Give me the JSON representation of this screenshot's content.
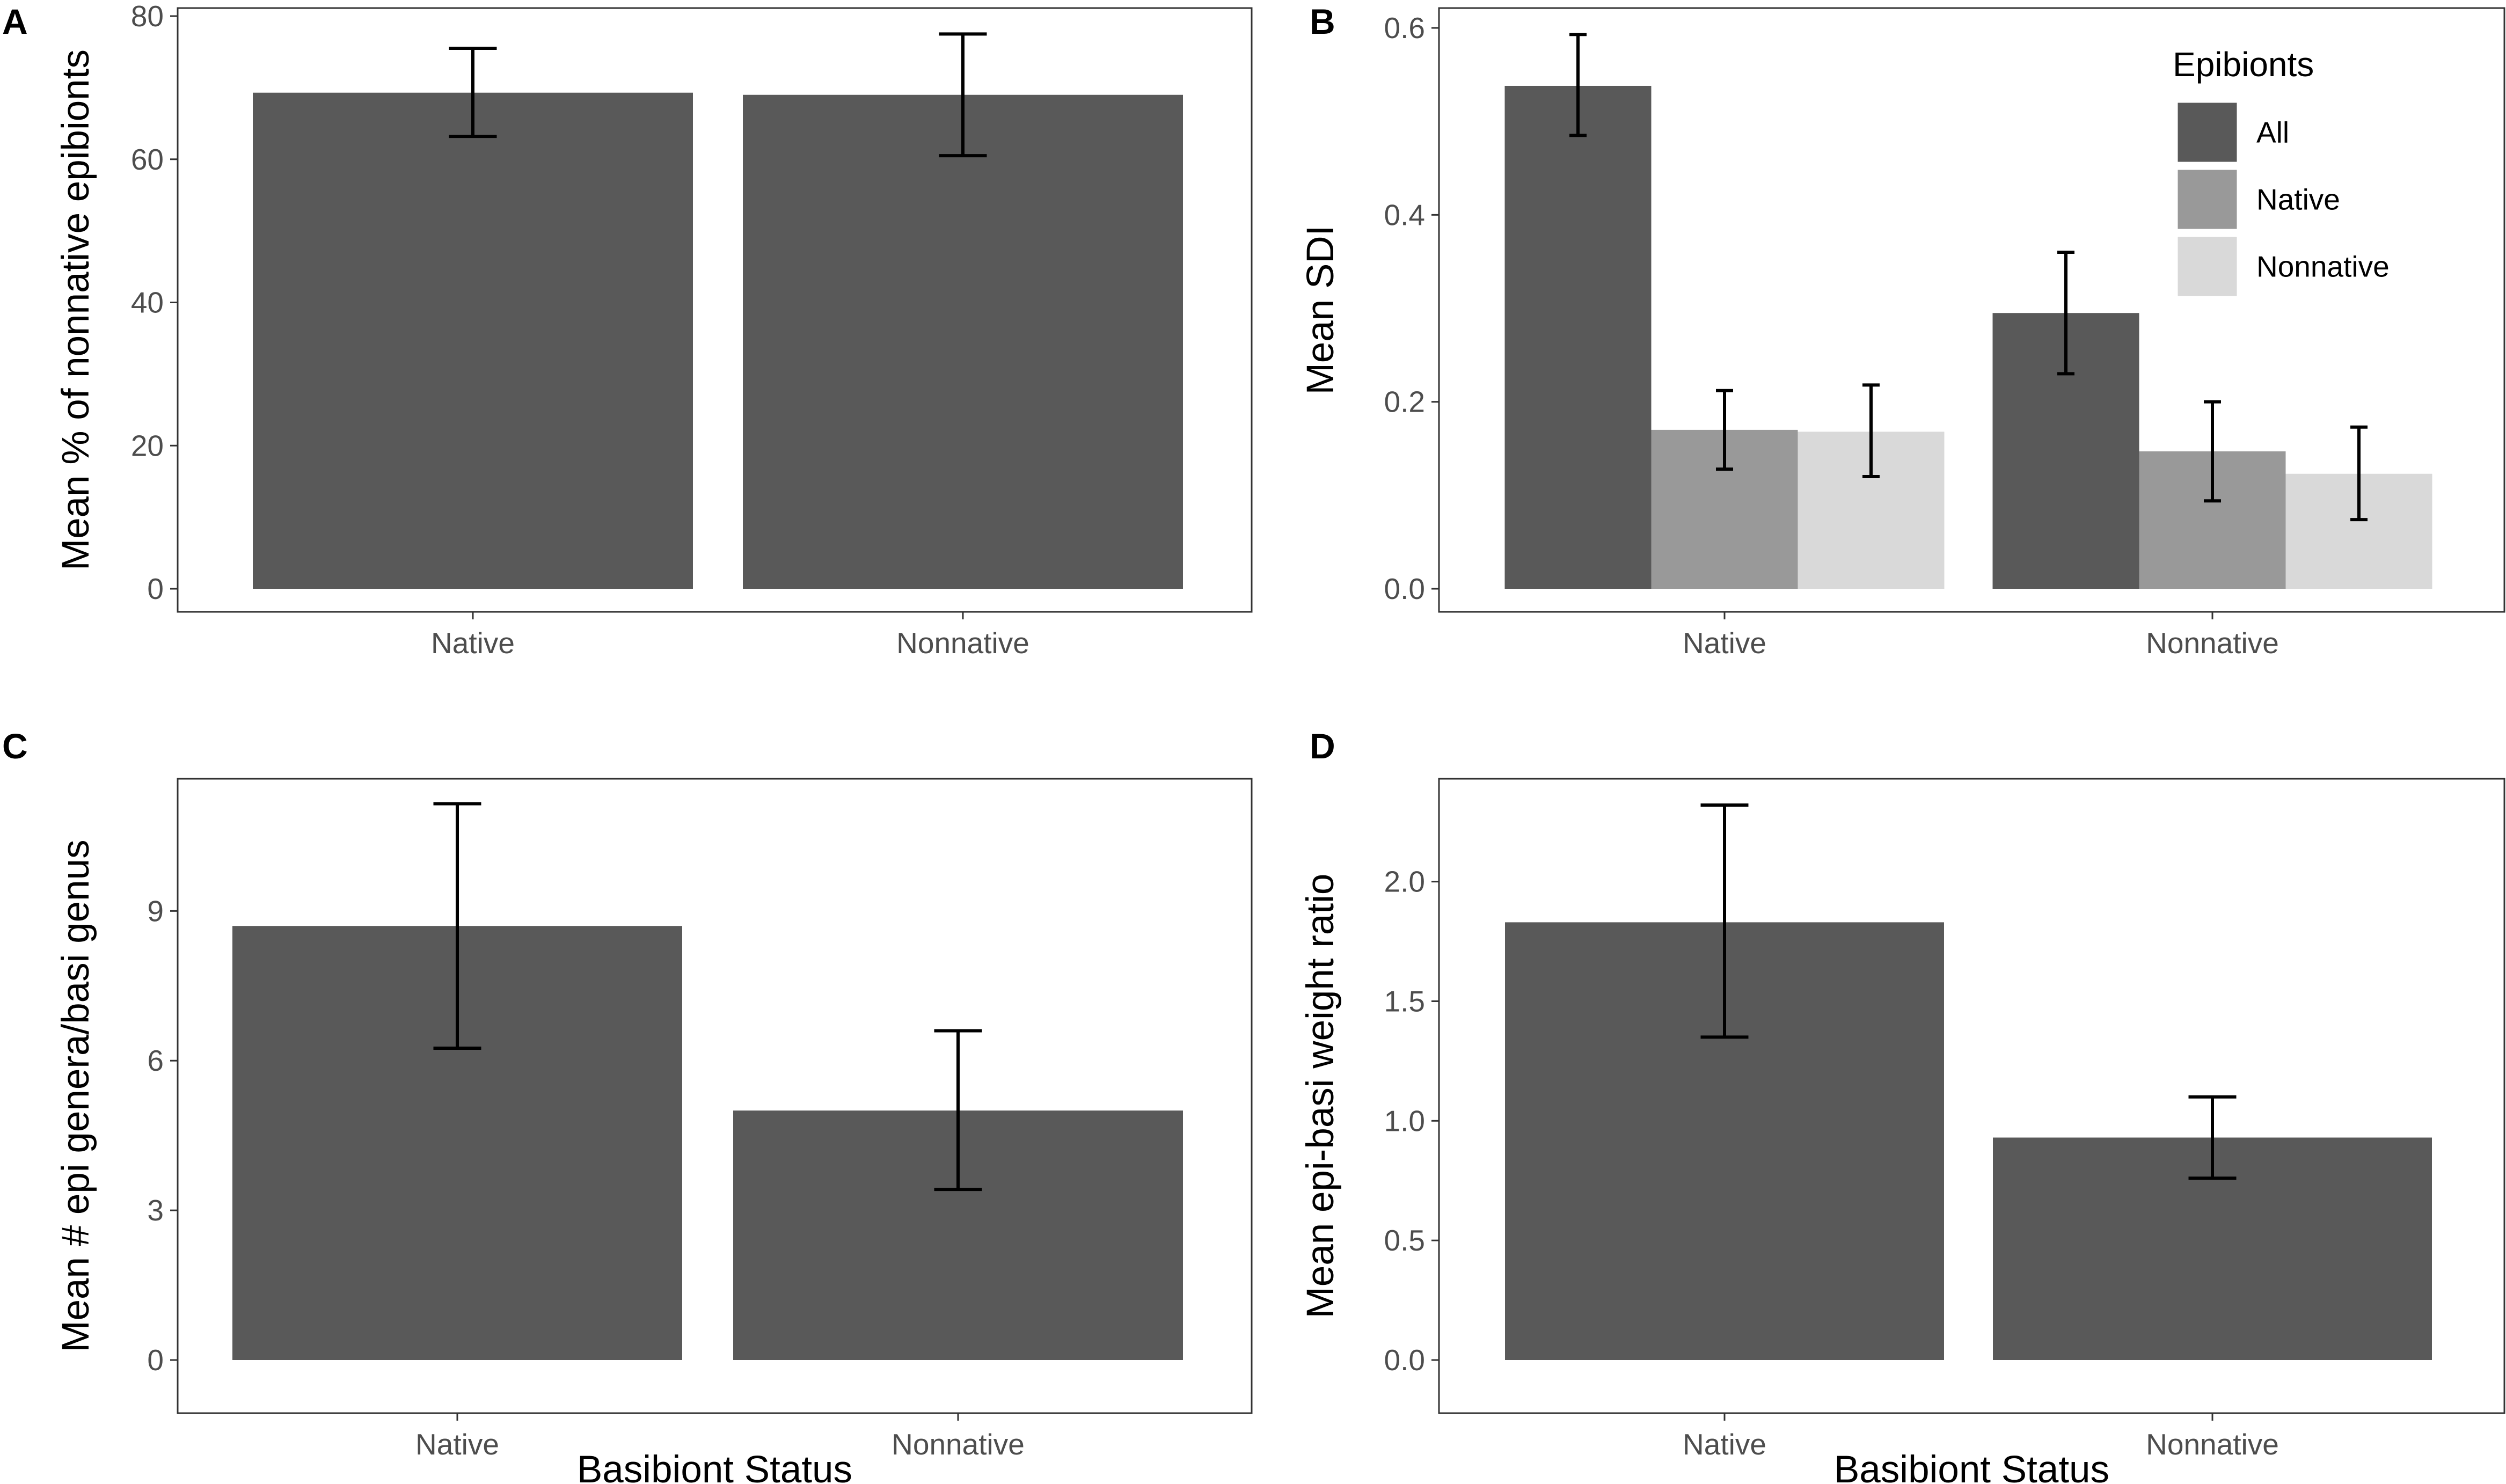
{
  "colors": {
    "all": "#595959",
    "native": "#999999",
    "nonnative": "#d9d9d9",
    "errorbar": "#000000",
    "frame": "#333333",
    "tick": "#333333"
  },
  "shared": {
    "xlabel": "Basibiont Status",
    "categories": [
      "Native",
      "Nonnative"
    ]
  },
  "chart_data": [
    {
      "panel": "A",
      "type": "bar",
      "categories": [
        "Native",
        "Nonnative"
      ],
      "values": [
        69.3,
        69.0
      ],
      "error_low": [
        63.2,
        60.5
      ],
      "error_high": [
        75.5,
        77.5
      ],
      "ylabel": "Mean % of nonnative epibionts",
      "xlabel": "",
      "ylim": [
        0,
        80
      ],
      "yticks": [
        0,
        20,
        40,
        60,
        80
      ],
      "ytick_labels": [
        "0",
        "20",
        "40",
        "60",
        "80"
      ],
      "grid": false
    },
    {
      "panel": "B",
      "type": "bar",
      "categories": [
        "Native",
        "Nonnative"
      ],
      "series": [
        {
          "name": "All",
          "color_key": "all",
          "values": [
            0.538,
            0.295
          ],
          "error_low": [
            0.485,
            0.23
          ],
          "error_high": [
            0.593,
            0.36
          ]
        },
        {
          "name": "Native",
          "color_key": "native",
          "values": [
            0.17,
            0.147
          ],
          "error_low": [
            0.128,
            0.094
          ],
          "error_high": [
            0.212,
            0.2
          ]
        },
        {
          "name": "Nonnative",
          "color_key": "nonnative",
          "values": [
            0.168,
            0.123
          ],
          "error_low": [
            0.12,
            0.074
          ],
          "error_high": [
            0.218,
            0.173
          ]
        }
      ],
      "ylabel": "Mean SDI",
      "xlabel": "",
      "ylim": [
        0,
        0.6
      ],
      "yticks": [
        0,
        0.2,
        0.4,
        0.6
      ],
      "ytick_labels": [
        "0.0",
        "0.2",
        "0.4",
        "0.6"
      ],
      "legend_title": "Epibionts",
      "legend_position": "top-right",
      "grid": false
    },
    {
      "panel": "C",
      "type": "bar",
      "categories": [
        "Native",
        "Nonnative"
      ],
      "values": [
        8.7,
        5.0
      ],
      "error_low": [
        6.25,
        3.42
      ],
      "error_high": [
        11.15,
        6.6
      ],
      "ylabel": "Mean # epi genera/basi genus",
      "xlabel": "Basibiont Status",
      "ylim": [
        0,
        11.65
      ],
      "yticks": [
        0,
        3,
        6,
        9
      ],
      "ytick_labels": [
        "0",
        "3",
        "6",
        "9"
      ],
      "grid": false
    },
    {
      "panel": "D",
      "type": "bar",
      "categories": [
        "Native",
        "Nonnative"
      ],
      "values": [
        1.83,
        0.93
      ],
      "error_low": [
        1.35,
        0.76
      ],
      "error_high": [
        2.32,
        1.1
      ],
      "ylabel": "Mean epi-basi weight ratio",
      "xlabel": "Basibiont Status",
      "ylim": [
        0,
        2.43
      ],
      "yticks": [
        0,
        0.5,
        1.0,
        1.5,
        2.0
      ],
      "ytick_labels": [
        "0.0",
        "0.5",
        "1.0",
        "1.5",
        "2.0"
      ],
      "grid": false
    }
  ]
}
